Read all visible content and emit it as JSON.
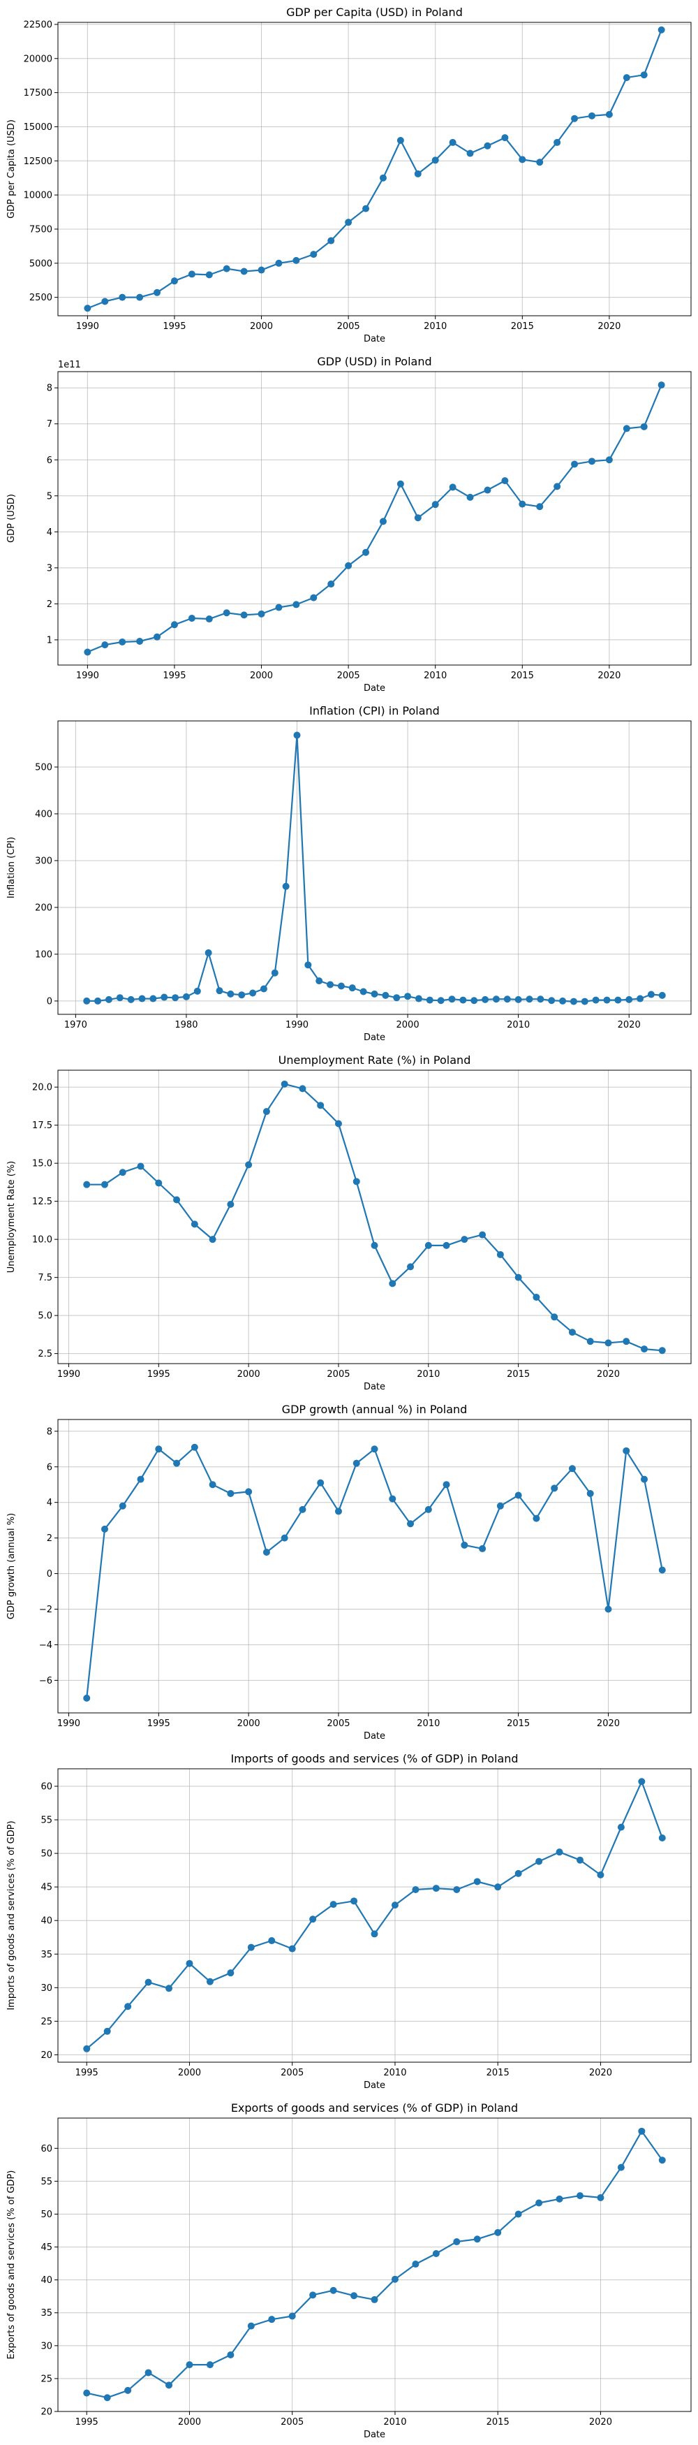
{
  "chart_data": [
    {
      "type": "line",
      "title": "GDP per Capita (USD) in Poland",
      "xlabel": "Date",
      "ylabel": "GDP per Capita (USD)",
      "xlim": [
        1988.3,
        2024.7
      ],
      "ylim": [
        1150,
        22650
      ],
      "xticks": [
        1990,
        1995,
        2000,
        2005,
        2010,
        2015,
        2020
      ],
      "yticks": [
        2500,
        5000,
        7500,
        10000,
        12500,
        15000,
        17500,
        20000,
        22500
      ],
      "ytick_labels": [
        "2500",
        "5000",
        "7500",
        "10000",
        "12500",
        "15000",
        "17500",
        "20000",
        "22500"
      ],
      "grid": true,
      "x": [
        1990,
        1991,
        1992,
        1993,
        1994,
        1995,
        1996,
        1997,
        1998,
        1999,
        2000,
        2001,
        2002,
        2003,
        2004,
        2005,
        2006,
        2007,
        2008,
        2009,
        2010,
        2011,
        2012,
        2013,
        2014,
        2015,
        2016,
        2017,
        2018,
        2019,
        2020,
        2021,
        2022,
        2023
      ],
      "y": [
        1700,
        2200,
        2500,
        2500,
        2850,
        3700,
        4200,
        4150,
        4600,
        4400,
        4500,
        5000,
        5200,
        5650,
        6650,
        8000,
        9000,
        11250,
        14000,
        11550,
        12550,
        13850,
        13050,
        13600,
        14200,
        12600,
        12400,
        13850,
        15600,
        15800,
        15900,
        18600,
        18800,
        22100
      ]
    },
    {
      "type": "line",
      "title": "GDP (USD) in Poland",
      "xlabel": "Date",
      "ylabel": "GDP (USD)",
      "offset_label": "1e11",
      "xlim": [
        1988.3,
        2024.7
      ],
      "ylim": [
        0.3,
        8.45
      ],
      "xticks": [
        1990,
        1995,
        2000,
        2005,
        2010,
        2015,
        2020
      ],
      "yticks": [
        1,
        2,
        3,
        4,
        5,
        6,
        7,
        8
      ],
      "ytick_labels": [
        "1",
        "2",
        "3",
        "4",
        "5",
        "6",
        "7",
        "8"
      ],
      "grid": true,
      "x": [
        1990,
        1991,
        1992,
        1993,
        1994,
        1995,
        1996,
        1997,
        1998,
        1999,
        2000,
        2001,
        2002,
        2003,
        2004,
        2005,
        2006,
        2007,
        2008,
        2009,
        2010,
        2011,
        2012,
        2013,
        2014,
        2015,
        2016,
        2017,
        2018,
        2019,
        2020,
        2021,
        2022,
        2023
      ],
      "y": [
        0.66,
        0.86,
        0.94,
        0.96,
        1.08,
        1.42,
        1.6,
        1.58,
        1.75,
        1.69,
        1.72,
        1.9,
        1.98,
        2.17,
        2.55,
        3.06,
        3.43,
        4.29,
        5.33,
        4.39,
        4.76,
        5.24,
        4.96,
        5.16,
        5.42,
        4.77,
        4.7,
        5.26,
        5.88,
        5.96,
        6.0,
        6.87,
        6.92,
        8.08
      ]
    },
    {
      "type": "line",
      "title": "Inflation (CPI) in Poland",
      "xlabel": "Date",
      "ylabel": "Inflation (CPI)",
      "xlim": [
        1968.4,
        2025.6
      ],
      "ylim": [
        -28.5,
        598.5
      ],
      "xticks": [
        1970,
        1980,
        1990,
        2000,
        2010,
        2020
      ],
      "yticks": [
        0,
        100,
        200,
        300,
        400,
        500
      ],
      "ytick_labels": [
        "0",
        "100",
        "200",
        "300",
        "400",
        "500"
      ],
      "grid": true,
      "x": [
        1971,
        1972,
        1973,
        1974,
        1975,
        1976,
        1977,
        1978,
        1979,
        1980,
        1981,
        1982,
        1983,
        1984,
        1985,
        1986,
        1987,
        1988,
        1989,
        1990,
        1991,
        1992,
        1993,
        1994,
        1995,
        1996,
        1997,
        1998,
        1999,
        2000,
        2001,
        2002,
        2003,
        2004,
        2005,
        2006,
        2007,
        2008,
        2009,
        2010,
        2011,
        2012,
        2013,
        2014,
        2015,
        2016,
        2017,
        2018,
        2019,
        2020,
        2021,
        2022,
        2023
      ],
      "y": [
        0,
        0,
        3,
        7,
        3,
        5,
        5,
        8,
        7,
        9,
        21,
        103,
        22,
        15,
        13,
        17,
        26,
        60,
        245,
        568,
        77,
        43,
        35,
        32,
        28,
        20,
        15,
        12,
        7,
        10,
        5,
        2,
        1,
        4,
        2,
        1,
        3,
        4,
        4,
        3,
        4,
        4,
        1,
        0,
        -1,
        -1,
        2,
        2,
        2,
        3,
        5,
        14,
        12
      ]
    },
    {
      "type": "line",
      "title": "Unemployment Rate (%) in Poland",
      "xlabel": "Date",
      "ylabel": "Unemployment Rate (%)",
      "xlim": [
        1989.4,
        2024.6
      ],
      "ylim": [
        1.84,
        21.11
      ],
      "xticks": [
        1990,
        1995,
        2000,
        2005,
        2010,
        2015,
        2020
      ],
      "yticks": [
        2.5,
        5.0,
        7.5,
        10.0,
        12.5,
        15.0,
        17.5,
        20.0
      ],
      "ytick_labels": [
        "2.5",
        "5.0",
        "7.5",
        "10.0",
        "12.5",
        "15.0",
        "17.5",
        "20.0"
      ],
      "grid": true,
      "x": [
        1991,
        1992,
        1993,
        1994,
        1995,
        1996,
        1997,
        1998,
        1999,
        2000,
        2001,
        2002,
        2003,
        2004,
        2005,
        2006,
        2007,
        2008,
        2009,
        2010,
        2011,
        2012,
        2013,
        2014,
        2015,
        2016,
        2017,
        2018,
        2019,
        2020,
        2021,
        2022,
        2023
      ],
      "y": [
        13.6,
        13.6,
        14.4,
        14.8,
        13.7,
        12.6,
        11.0,
        10.0,
        12.3,
        14.9,
        18.4,
        20.2,
        19.9,
        18.8,
        17.6,
        13.8,
        9.6,
        7.1,
        8.2,
        9.6,
        9.6,
        10.0,
        10.3,
        9.0,
        7.5,
        6.2,
        4.9,
        3.9,
        3.3,
        3.2,
        3.3,
        2.8,
        2.7
      ]
    },
    {
      "type": "line",
      "title": "GDP growth (annual %) in Poland",
      "xlabel": "Date",
      "ylabel": "GDP growth (annual %)",
      "xlim": [
        1989.4,
        2024.6
      ],
      "ylim": [
        -7.83,
        8.66
      ],
      "xticks": [
        1990,
        1995,
        2000,
        2005,
        2010,
        2015,
        2020
      ],
      "yticks": [
        -6,
        -4,
        -2,
        0,
        2,
        4,
        6,
        8
      ],
      "ytick_labels": [
        "−6",
        "−4",
        "−2",
        "0",
        "2",
        "4",
        "6",
        "8"
      ],
      "grid": true,
      "x": [
        1991,
        1992,
        1993,
        1994,
        1995,
        1996,
        1997,
        1998,
        1999,
        2000,
        2001,
        2002,
        2003,
        2004,
        2005,
        2006,
        2007,
        2008,
        2009,
        2010,
        2011,
        2012,
        2013,
        2014,
        2015,
        2016,
        2017,
        2018,
        2019,
        2020,
        2021,
        2022,
        2023
      ],
      "y": [
        -7.0,
        2.5,
        3.8,
        5.3,
        7.0,
        6.2,
        7.1,
        5.0,
        4.5,
        4.6,
        1.2,
        2.0,
        3.6,
        5.1,
        3.5,
        6.2,
        7.0,
        4.2,
        2.8,
        3.6,
        5.0,
        1.6,
        1.4,
        3.8,
        4.4,
        3.1,
        4.8,
        5.9,
        4.5,
        -2.0,
        6.9,
        5.3,
        0.2
      ]
    },
    {
      "type": "line",
      "title": "Imports of goods and services (% of GDP) in Poland",
      "xlabel": "Date",
      "ylabel": "Imports of goods and services (% of GDP)",
      "xlim": [
        1993.6,
        2024.4
      ],
      "ylim": [
        18.9,
        62.6
      ],
      "xticks": [
        1995,
        2000,
        2005,
        2010,
        2015,
        2020
      ],
      "yticks": [
        20,
        25,
        30,
        35,
        40,
        45,
        50,
        55,
        60
      ],
      "ytick_labels": [
        "20",
        "25",
        "30",
        "35",
        "40",
        "45",
        "50",
        "55",
        "60"
      ],
      "grid": true,
      "x": [
        1995,
        1996,
        1997,
        1998,
        1999,
        2000,
        2001,
        2002,
        2003,
        2004,
        2005,
        2006,
        2007,
        2008,
        2009,
        2010,
        2011,
        2012,
        2013,
        2014,
        2015,
        2016,
        2017,
        2018,
        2019,
        2020,
        2021,
        2022,
        2023
      ],
      "y": [
        20.9,
        23.5,
        27.2,
        30.8,
        29.9,
        33.6,
        30.9,
        32.2,
        36.0,
        37.0,
        35.8,
        40.2,
        42.4,
        42.9,
        38.0,
        42.3,
        44.6,
        44.8,
        44.6,
        45.8,
        45.0,
        47.0,
        48.8,
        50.2,
        49.0,
        46.8,
        53.9,
        60.7,
        52.3
      ]
    },
    {
      "type": "line",
      "title": "Exports of goods and services (% of GDP) in Poland",
      "xlabel": "Date",
      "ylabel": "Exports of goods and services (% of GDP)",
      "xlim": [
        1993.6,
        2024.4
      ],
      "ylim": [
        20.0,
        64.6
      ],
      "xticks": [
        1995,
        2000,
        2005,
        2010,
        2015,
        2020
      ],
      "yticks": [
        20,
        25,
        30,
        35,
        40,
        45,
        50,
        55,
        60
      ],
      "ytick_labels": [
        "20",
        "25",
        "30",
        "35",
        "40",
        "45",
        "50",
        "55",
        "60"
      ],
      "grid": true,
      "x": [
        1995,
        1996,
        1997,
        1998,
        1999,
        2000,
        2001,
        2002,
        2003,
        2004,
        2005,
        2006,
        2007,
        2008,
        2009,
        2010,
        2011,
        2012,
        2013,
        2014,
        2015,
        2016,
        2017,
        2018,
        2019,
        2020,
        2021,
        2022,
        2023
      ],
      "y": [
        22.8,
        22.1,
        23.2,
        25.9,
        24.0,
        27.1,
        27.1,
        28.6,
        33.0,
        34.0,
        34.5,
        37.7,
        38.4,
        37.6,
        37.0,
        40.1,
        42.4,
        44.0,
        45.8,
        46.2,
        47.2,
        50.0,
        51.7,
        52.3,
        52.8,
        52.5,
        57.1,
        62.6,
        58.2
      ]
    }
  ]
}
